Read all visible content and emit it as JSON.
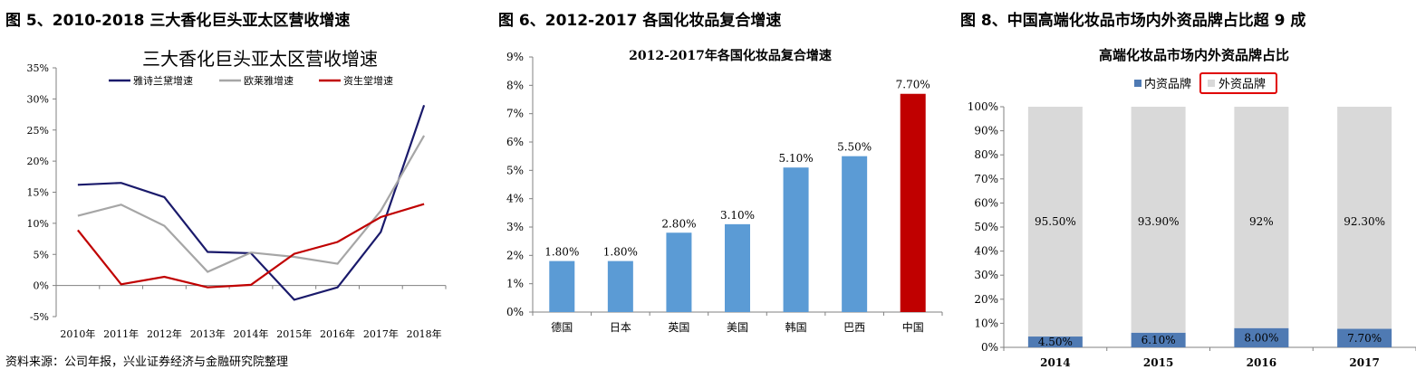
{
  "figures": [
    {
      "caption": "图 5、2010-2018 三大香化巨头亚太区营收增速"
    },
    {
      "caption": "图 6、2012-2017 各国化妆品复合增速"
    },
    {
      "caption": "图 8、中国高端化妆品市场内外资品牌占比超 9 成"
    }
  ],
  "source_note": "资料来源：公司年报，兴业证券经济与金融研究院整理",
  "chart_data": [
    {
      "type": "line",
      "title": "三大香化巨头亚太区营收增速",
      "xlabel": "",
      "ylabel": "",
      "categories": [
        "2010年",
        "2011年",
        "2012年",
        "2013年",
        "2014年",
        "2015年",
        "2016年",
        "2017年",
        "2018年"
      ],
      "y_ticks": [
        "-5%",
        "0%",
        "5%",
        "10%",
        "15%",
        "20%",
        "25%",
        "30%",
        "35%"
      ],
      "ylim": [
        -5,
        35
      ],
      "grid": false,
      "legend_position": "top",
      "series": [
        {
          "name": "雅诗兰黛增速",
          "color": "#1a1a6b",
          "values": [
            16.2,
            16.5,
            14.2,
            5.4,
            5.2,
            -2.3,
            -0.3,
            8.6,
            29.0
          ]
        },
        {
          "name": "欧莱雅增速",
          "color": "#a6a6a6",
          "values": [
            11.2,
            13.0,
            9.6,
            2.2,
            5.3,
            4.6,
            3.5,
            12.0,
            24.1
          ]
        },
        {
          "name": "资生堂增速",
          "color": "#c00000",
          "values": [
            8.9,
            0.2,
            1.4,
            -0.3,
            0.1,
            5.1,
            7.0,
            11.0,
            13.1
          ]
        }
      ]
    },
    {
      "type": "bar",
      "title": "2012-2017年各国化妆品复合增速",
      "xlabel": "",
      "ylabel": "",
      "categories": [
        "德国",
        "日本",
        "英国",
        "美国",
        "韩国",
        "巴西",
        "中国"
      ],
      "values": [
        1.8,
        1.8,
        2.8,
        3.1,
        5.1,
        5.5,
        7.7
      ],
      "value_labels": [
        "1.80%",
        "1.80%",
        "2.80%",
        "3.10%",
        "5.10%",
        "5.50%",
        "7.70%"
      ],
      "y_ticks": [
        "0%",
        "1%",
        "2%",
        "3%",
        "4%",
        "5%",
        "6%",
        "7%",
        "8%",
        "9%"
      ],
      "ylim": [
        0,
        9
      ],
      "grid": false,
      "colors": [
        "#5b9bd5",
        "#5b9bd5",
        "#5b9bd5",
        "#5b9bd5",
        "#5b9bd5",
        "#5b9bd5",
        "#c00000"
      ]
    },
    {
      "type": "bar",
      "stacked": true,
      "title": "高端化妆品市场内外资品牌占比",
      "xlabel": "",
      "ylabel": "",
      "categories": [
        "2014",
        "2015",
        "2016",
        "2017"
      ],
      "y_ticks": [
        "0%",
        "10%",
        "20%",
        "30%",
        "40%",
        "50%",
        "60%",
        "70%",
        "80%",
        "90%",
        "100%"
      ],
      "ylim": [
        0,
        100
      ],
      "grid": false,
      "legend_position": "top",
      "series": [
        {
          "name": "内资品牌",
          "color": "#4f7ab3",
          "values": [
            4.5,
            6.1,
            8.0,
            7.7
          ],
          "labels": [
            "4.50%",
            "6.10%",
            "8.00%",
            "7.70%"
          ]
        },
        {
          "name": "外资品牌",
          "color": "#d9d9d9",
          "values": [
            95.5,
            93.9,
            92.0,
            92.3
          ],
          "labels": [
            "95.50%",
            "93.90%",
            "92%",
            "92.30%"
          ]
        }
      ],
      "highlight_color": "#e00000"
    }
  ]
}
